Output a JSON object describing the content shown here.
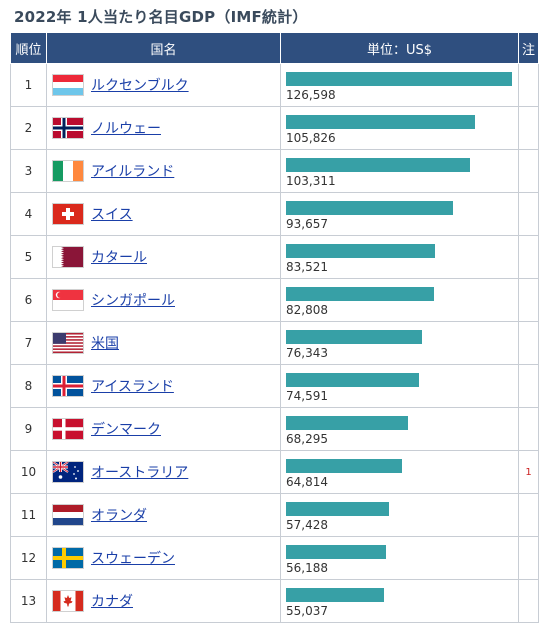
{
  "title": "2022年 1人当たり名目GDP（IMF統計）",
  "headers": {
    "rank": "順位",
    "country": "国名",
    "value": "単位：US$",
    "note": "注"
  },
  "colors": {
    "header": "#2f4f7f",
    "bar": "#37a0a6",
    "link": "#1a3fa8",
    "note": "#cc2222"
  },
  "chart_data": {
    "type": "bar",
    "orientation": "horizontal",
    "title": "2022年 1人当たり名目GDP（IMF統計）",
    "unit": "US$",
    "categories": [
      "ルクセンブルク",
      "ノルウェー",
      "アイルランド",
      "スイス",
      "カタール",
      "シンガポール",
      "米国",
      "アイスランド",
      "デンマーク",
      "オーストラリア",
      "オランダ",
      "スウェーデン",
      "カナダ"
    ],
    "values": [
      126598,
      105826,
      103311,
      93657,
      83521,
      82808,
      76343,
      74591,
      68295,
      64814,
      57428,
      56188,
      55037
    ],
    "value_labels": [
      "126,598",
      "105,826",
      "103,311",
      "93,657",
      "83,521",
      "82,808",
      "76,343",
      "74,591",
      "68,295",
      "64,814",
      "57,428",
      "56,188",
      "55,037"
    ],
    "ranks": [
      "1",
      "2",
      "3",
      "4",
      "5",
      "6",
      "7",
      "8",
      "9",
      "10",
      "11",
      "12",
      "13"
    ],
    "notes": [
      "",
      "",
      "",
      "",
      "",
      "",
      "",
      "",
      "",
      "1",
      "",
      "",
      ""
    ],
    "flags": [
      "luxembourg-flag",
      "norway-flag",
      "ireland-flag",
      "switzerland-flag",
      "qatar-flag",
      "singapore-flag",
      "usa-flag",
      "iceland-flag",
      "denmark-flag",
      "australia-flag",
      "netherlands-flag",
      "sweden-flag",
      "canada-flag"
    ]
  }
}
